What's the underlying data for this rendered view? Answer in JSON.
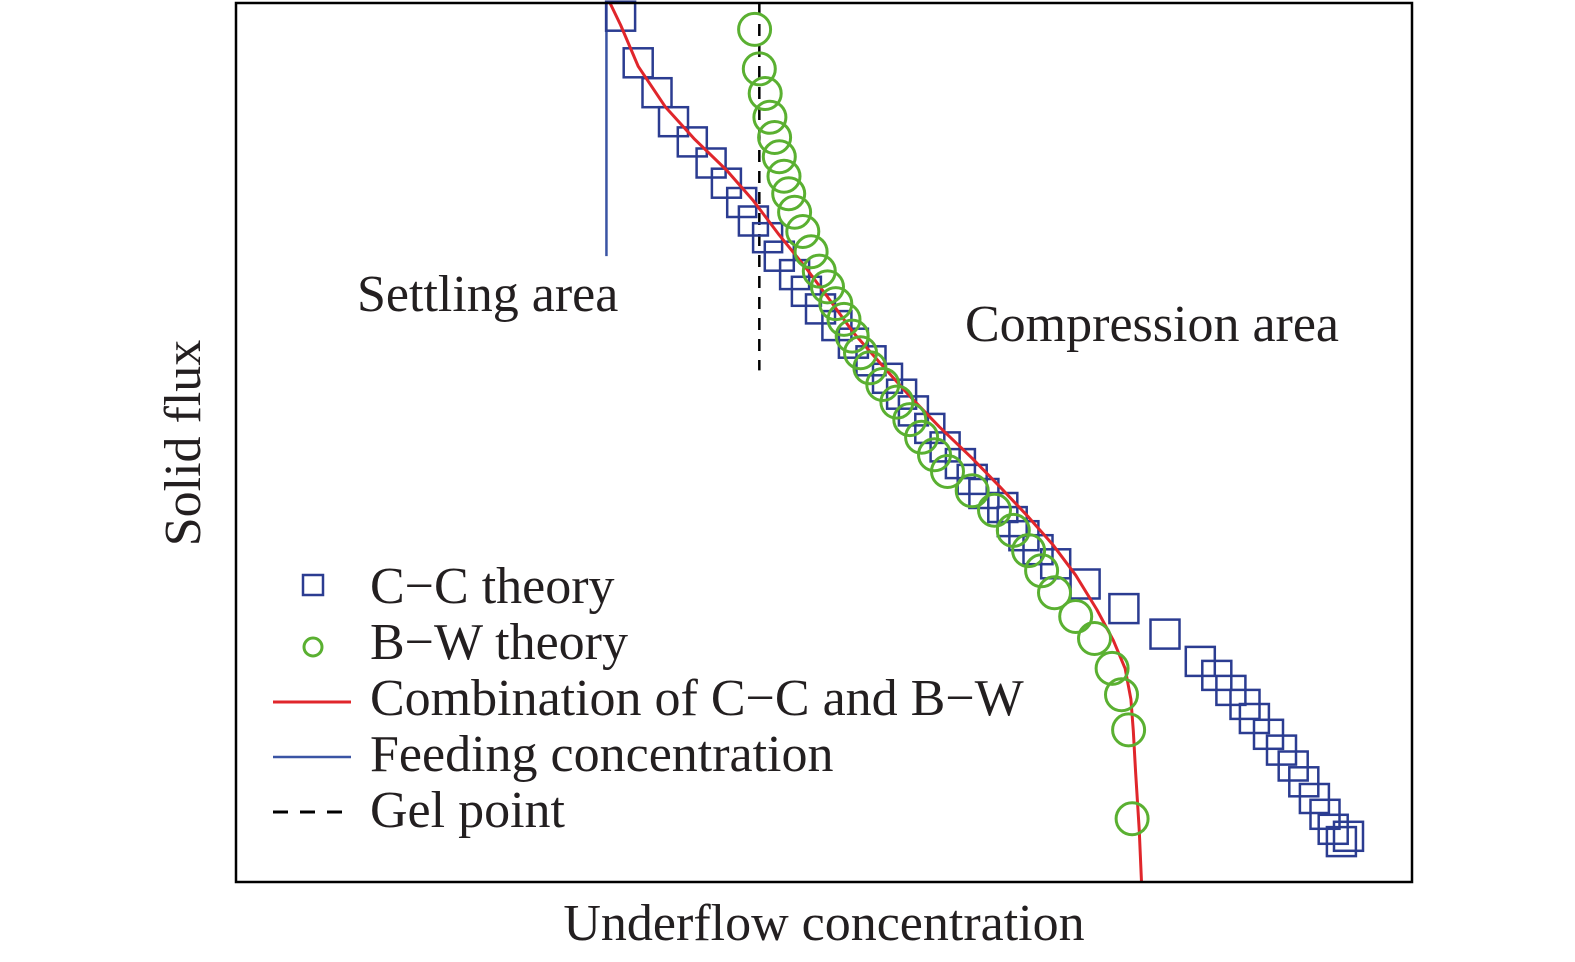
{
  "chart_data": {
    "type": "scatter",
    "xlabel": "Underflow concentration",
    "ylabel": "Solid flux",
    "xlim": [
      0,
      100
    ],
    "ylim": [
      0,
      100
    ],
    "grid": false,
    "legend_placement": "bottom-left",
    "colors": {
      "cc": "#2b3c91",
      "bw": "#5ab031",
      "combo": "#e0262b",
      "feed": "#3a54a4",
      "gel": "#000000",
      "frame": "#000000"
    },
    "annotations": [
      {
        "text": "Settling area",
        "x": 22,
        "y": 67
      },
      {
        "text": "Compression area",
        "x": 62,
        "y": 63.5
      }
    ],
    "series": [
      {
        "name": "C−C theory",
        "kind": "marker-square",
        "x": [
          32.7,
          34.2,
          35.8,
          37.2,
          38.8,
          40.4,
          41.7,
          43.0,
          44.0,
          45.2,
          46.2,
          47.5,
          48.5,
          49.7,
          51.1,
          52.5,
          54.0,
          55.4,
          56.6,
          57.6,
          59.0,
          60.3,
          61.6,
          62.6,
          63.6,
          65.2,
          66.0,
          67.0,
          68.2,
          69.7,
          72.2,
          75.5,
          79.0,
          82.0,
          83.4,
          84.6,
          85.8,
          86.6,
          87.8,
          88.9,
          89.9,
          90.8,
          91.7,
          92.6,
          93.3,
          94.0,
          94.6
        ],
        "y": [
          98.5,
          93.2,
          89.8,
          86.5,
          84.2,
          81.8,
          79.5,
          77.3,
          75.2,
          73.3,
          71.2,
          69.1,
          67.2,
          65.2,
          63.3,
          61.3,
          59.3,
          57.3,
          55.5,
          53.6,
          51.6,
          49.5,
          47.6,
          45.8,
          44.2,
          42.6,
          41.0,
          39.4,
          37.8,
          36.2,
          33.9,
          31.1,
          28.2,
          25.1,
          23.5,
          21.8,
          20.2,
          18.6,
          16.8,
          15.0,
          13.2,
          11.4,
          9.5,
          7.7,
          6.0,
          4.6,
          5.2
        ]
      },
      {
        "name": "B−W theory",
        "kind": "marker-circle",
        "x": [
          44.1,
          44.5,
          45.0,
          45.4,
          45.8,
          46.2,
          46.6,
          47.0,
          47.5,
          48.2,
          48.9,
          49.6,
          50.3,
          51.0,
          51.7,
          52.4,
          53.1,
          53.9,
          55.0,
          56.2,
          57.3,
          58.3,
          59.4,
          60.5,
          62.6,
          64.5,
          66.1,
          67.4,
          68.5,
          69.6,
          71.4,
          73.0,
          74.5,
          75.3,
          75.9,
          76.2
        ],
        "y": [
          97.0,
          92.5,
          89.7,
          87.0,
          84.7,
          82.5,
          80.3,
          78.3,
          76.2,
          74.0,
          71.7,
          69.5,
          67.7,
          65.8,
          64.0,
          62.1,
          60.2,
          58.5,
          56.6,
          54.6,
          52.6,
          50.6,
          48.6,
          46.7,
          44.5,
          42.3,
          40.0,
          37.7,
          35.4,
          32.9,
          30.2,
          27.7,
          24.3,
          21.3,
          17.3,
          7.2
        ]
      },
      {
        "name": "Combination of C−C and B−W",
        "kind": "line-solid",
        "x": [
          31.8,
          32.7,
          34.2,
          36.5,
          39.0,
          41.7,
          44.0,
          46.2,
          48.5,
          50.5,
          52.5,
          54.8,
          57.2,
          59.8,
          62.6,
          65.0,
          67.4,
          69.5,
          71.4,
          73.2,
          74.6,
          75.6,
          76.1,
          76.3,
          76.5,
          76.8,
          77.0
        ],
        "y": [
          100,
          97.5,
          92.8,
          88.2,
          84.5,
          81.0,
          77.5,
          73.6,
          69.8,
          66.2,
          62.5,
          59.0,
          55.4,
          51.8,
          48.2,
          44.9,
          41.5,
          38.3,
          34.9,
          31.0,
          27.5,
          24.3,
          20.8,
          17.2,
          12.5,
          6.0,
          0
        ]
      },
      {
        "name": "Feeding concentration",
        "kind": "line-solid",
        "x": [
          31.5,
          31.5
        ],
        "y": [
          100,
          71.2
        ]
      },
      {
        "name": "Gel point",
        "kind": "line-dashed",
        "x": [
          44.5,
          44.5
        ],
        "y": [
          100,
          58.2
        ]
      }
    ]
  }
}
